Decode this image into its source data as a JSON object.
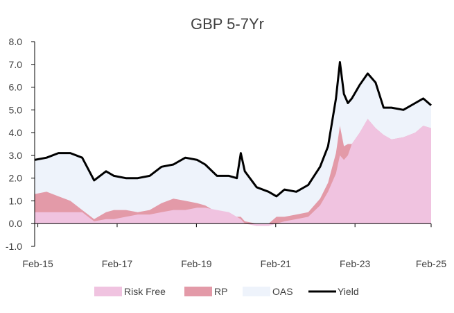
{
  "chart_data": {
    "type": "area",
    "title": "GBP 5-7Yr",
    "ylim": [
      -1.0,
      8.0
    ],
    "yticks": [
      "-1.0",
      "0.0",
      "1.0",
      "2.0",
      "3.0",
      "4.0",
      "5.0",
      "6.0",
      "7.0",
      "8.0"
    ],
    "xlim": [
      2015.0,
      2025.0
    ],
    "xticks": [
      {
        "label": "Feb-15",
        "x": 2015.08
      },
      {
        "label": "Feb-17",
        "x": 2017.08
      },
      {
        "label": "Feb-19",
        "x": 2019.08
      },
      {
        "label": "Feb-21",
        "x": 2021.08
      },
      {
        "label": "Feb-23",
        "x": 2023.08
      },
      {
        "label": "Feb-25",
        "x": 2025.08
      }
    ],
    "colors": {
      "risk_free": "#F0C3E0",
      "rp": "#E39AA8",
      "oas": "#EEF3FB",
      "yield": "#000000",
      "axis": "#000000",
      "text": "#404040"
    },
    "legend": [
      {
        "key": "risk_free",
        "label": "Risk Free"
      },
      {
        "key": "rp",
        "label": "RP"
      },
      {
        "key": "oas",
        "label": "OAS"
      },
      {
        "key": "yield",
        "label": "Yield"
      }
    ],
    "series": {
      "x": [
        2015.0,
        2015.3,
        2015.6,
        2015.9,
        2016.2,
        2016.5,
        2016.8,
        2017.0,
        2017.3,
        2017.6,
        2017.9,
        2018.2,
        2018.5,
        2018.8,
        2019.1,
        2019.3,
        2019.6,
        2019.9,
        2020.1,
        2020.2,
        2020.3,
        2020.6,
        2020.9,
        2021.1,
        2021.3,
        2021.6,
        2021.9,
        2022.2,
        2022.4,
        2022.6,
        2022.7,
        2022.8,
        2022.9,
        2023.0,
        2023.2,
        2023.4,
        2023.6,
        2023.8,
        2024.0,
        2024.3,
        2024.6,
        2024.8,
        2025.0
      ],
      "risk_free": [
        0.5,
        0.5,
        0.5,
        0.5,
        0.5,
        0.1,
        0.2,
        0.2,
        0.3,
        0.4,
        0.4,
        0.5,
        0.6,
        0.6,
        0.7,
        0.7,
        0.6,
        0.5,
        0.3,
        0.2,
        0.0,
        -0.1,
        -0.1,
        0.0,
        0.1,
        0.2,
        0.3,
        0.8,
        1.4,
        2.2,
        3.0,
        2.8,
        3.0,
        3.5,
        4.0,
        4.6,
        4.2,
        3.9,
        3.7,
        3.8,
        4.0,
        4.3,
        4.2
      ],
      "rp": [
        1.3,
        1.4,
        1.2,
        1.0,
        0.6,
        0.2,
        0.5,
        0.6,
        0.6,
        0.5,
        0.6,
        0.9,
        1.1,
        1.0,
        0.9,
        0.8,
        0.5,
        0.4,
        0.3,
        0.3,
        0.1,
        0.0,
        0.0,
        0.3,
        0.3,
        0.4,
        0.5,
        1.1,
        1.8,
        3.1,
        4.3,
        3.4,
        3.5,
        3.5,
        4.0,
        4.6,
        4.2,
        3.9,
        3.7,
        3.8,
        4.0,
        4.3,
        4.2
      ],
      "yield": [
        2.8,
        2.9,
        3.1,
        3.1,
        2.9,
        1.9,
        2.3,
        2.1,
        2.0,
        2.0,
        2.1,
        2.5,
        2.6,
        2.9,
        2.8,
        2.6,
        2.1,
        2.1,
        2.0,
        3.1,
        2.3,
        1.6,
        1.4,
        1.2,
        1.5,
        1.4,
        1.7,
        2.5,
        3.4,
        5.5,
        7.1,
        5.7,
        5.3,
        5.5,
        6.1,
        6.6,
        6.2,
        5.1,
        5.1,
        5.0,
        5.3,
        5.5,
        5.2
      ]
    }
  }
}
